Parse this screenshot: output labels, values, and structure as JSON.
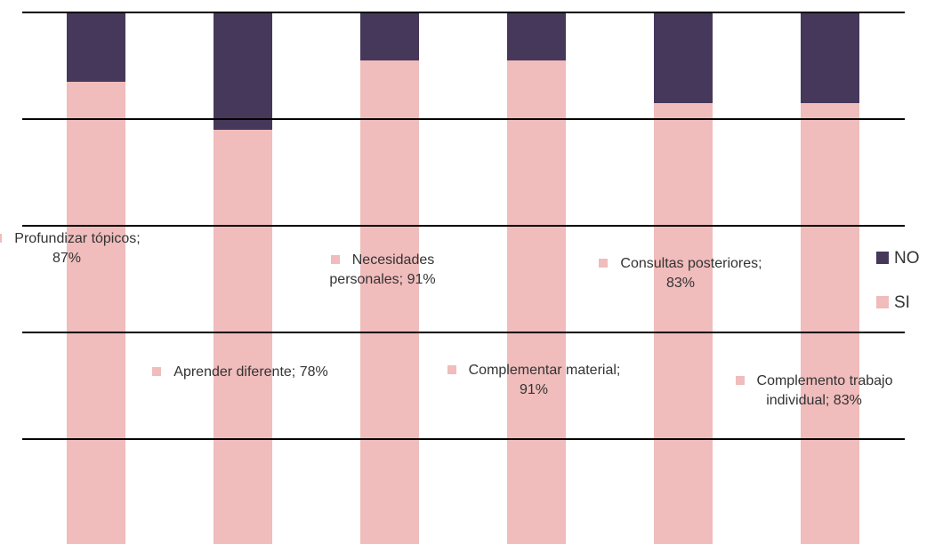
{
  "chart_data": {
    "type": "stacked_bar",
    "ylim": [
      0,
      100
    ],
    "yticks": [
      0,
      20,
      40,
      60,
      80,
      100
    ],
    "grid": true,
    "legend": "right",
    "series": [
      {
        "name": "SI",
        "color": "#f0bcbc",
        "values": [
          87,
          78,
          91,
          91,
          83,
          83
        ],
        "value_labels": [
          "Profundizar tópicos; 87%",
          "Aprender diferente; 78%",
          "Necesidades personales; 91%",
          "Complementar material; 91%",
          "Consultas posteriores; 83%",
          "Complemento trabajo individual; 83%"
        ]
      },
      {
        "name": "NO",
        "color": "#46385a",
        "values": [
          13,
          22,
          9,
          9,
          17,
          17
        ]
      }
    ]
  }
}
